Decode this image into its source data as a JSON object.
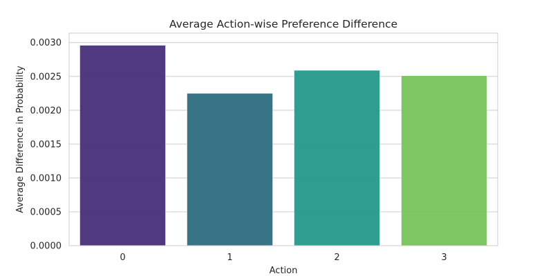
{
  "chart_data": {
    "type": "bar",
    "title": "Average Action-wise Preference Difference",
    "xlabel": "Action",
    "ylabel": "Average Difference in Probability",
    "categories": [
      "0",
      "1",
      "2",
      "3"
    ],
    "values": [
      0.00296,
      0.00225,
      0.00259,
      0.00251
    ],
    "colors": [
      "#482e79",
      "#2c6e80",
      "#24998a",
      "#76c45b"
    ],
    "ylim": [
      0,
      0.00314
    ],
    "yticks": [
      "0.0000",
      "0.0005",
      "0.0010",
      "0.0015",
      "0.0020",
      "0.0025",
      "0.0030"
    ],
    "ytick_values": [
      0,
      0.0005,
      0.001,
      0.0015,
      0.002,
      0.0025,
      0.003
    ],
    "grid": true,
    "grid_axis": "y",
    "legend": "none"
  }
}
